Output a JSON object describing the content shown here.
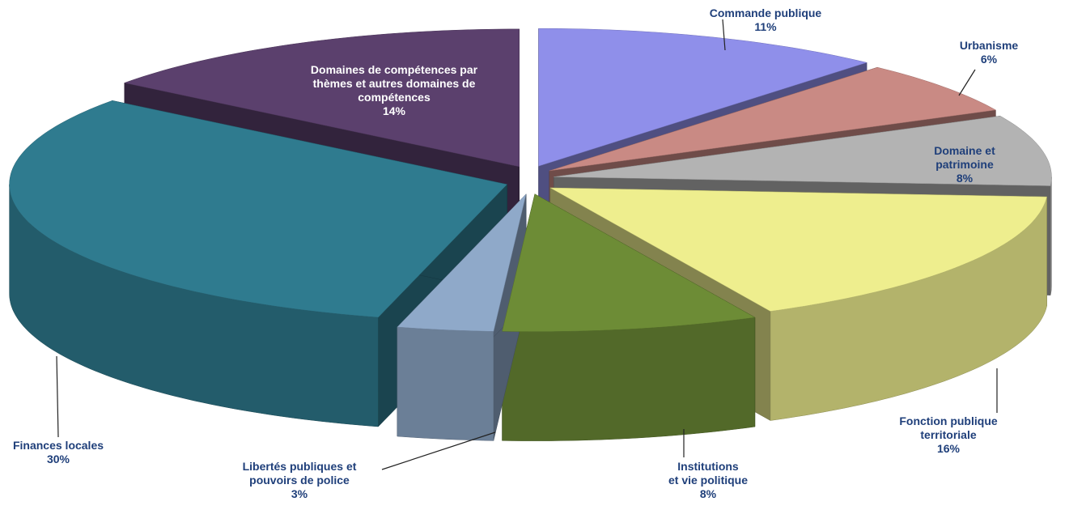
{
  "chart_data": {
    "type": "pie3d",
    "categories": [
      "Commande publique",
      "Urbanisme",
      "Domaine et patrimoine",
      "Fonction publique territoriale",
      "Institutions\net vie politique",
      "Libertés publiques et\npouvoirs de police",
      "Finances locales",
      "Domaines de compétences par\nthèmes et autres domaines de\ncompétences"
    ],
    "values": [
      11,
      6,
      8,
      16,
      8,
      3,
      30,
      14
    ],
    "value_labels": [
      "11%",
      "6%",
      "8%",
      "16%",
      "8%",
      "3%",
      "30%",
      "14%"
    ],
    "colors": [
      "#8f8fea",
      "#c98a84",
      "#b3b3b3",
      "#eeee8e",
      "#6d8c36",
      "#8fa9c9",
      "#2f7b8f",
      "#5b406d"
    ]
  }
}
